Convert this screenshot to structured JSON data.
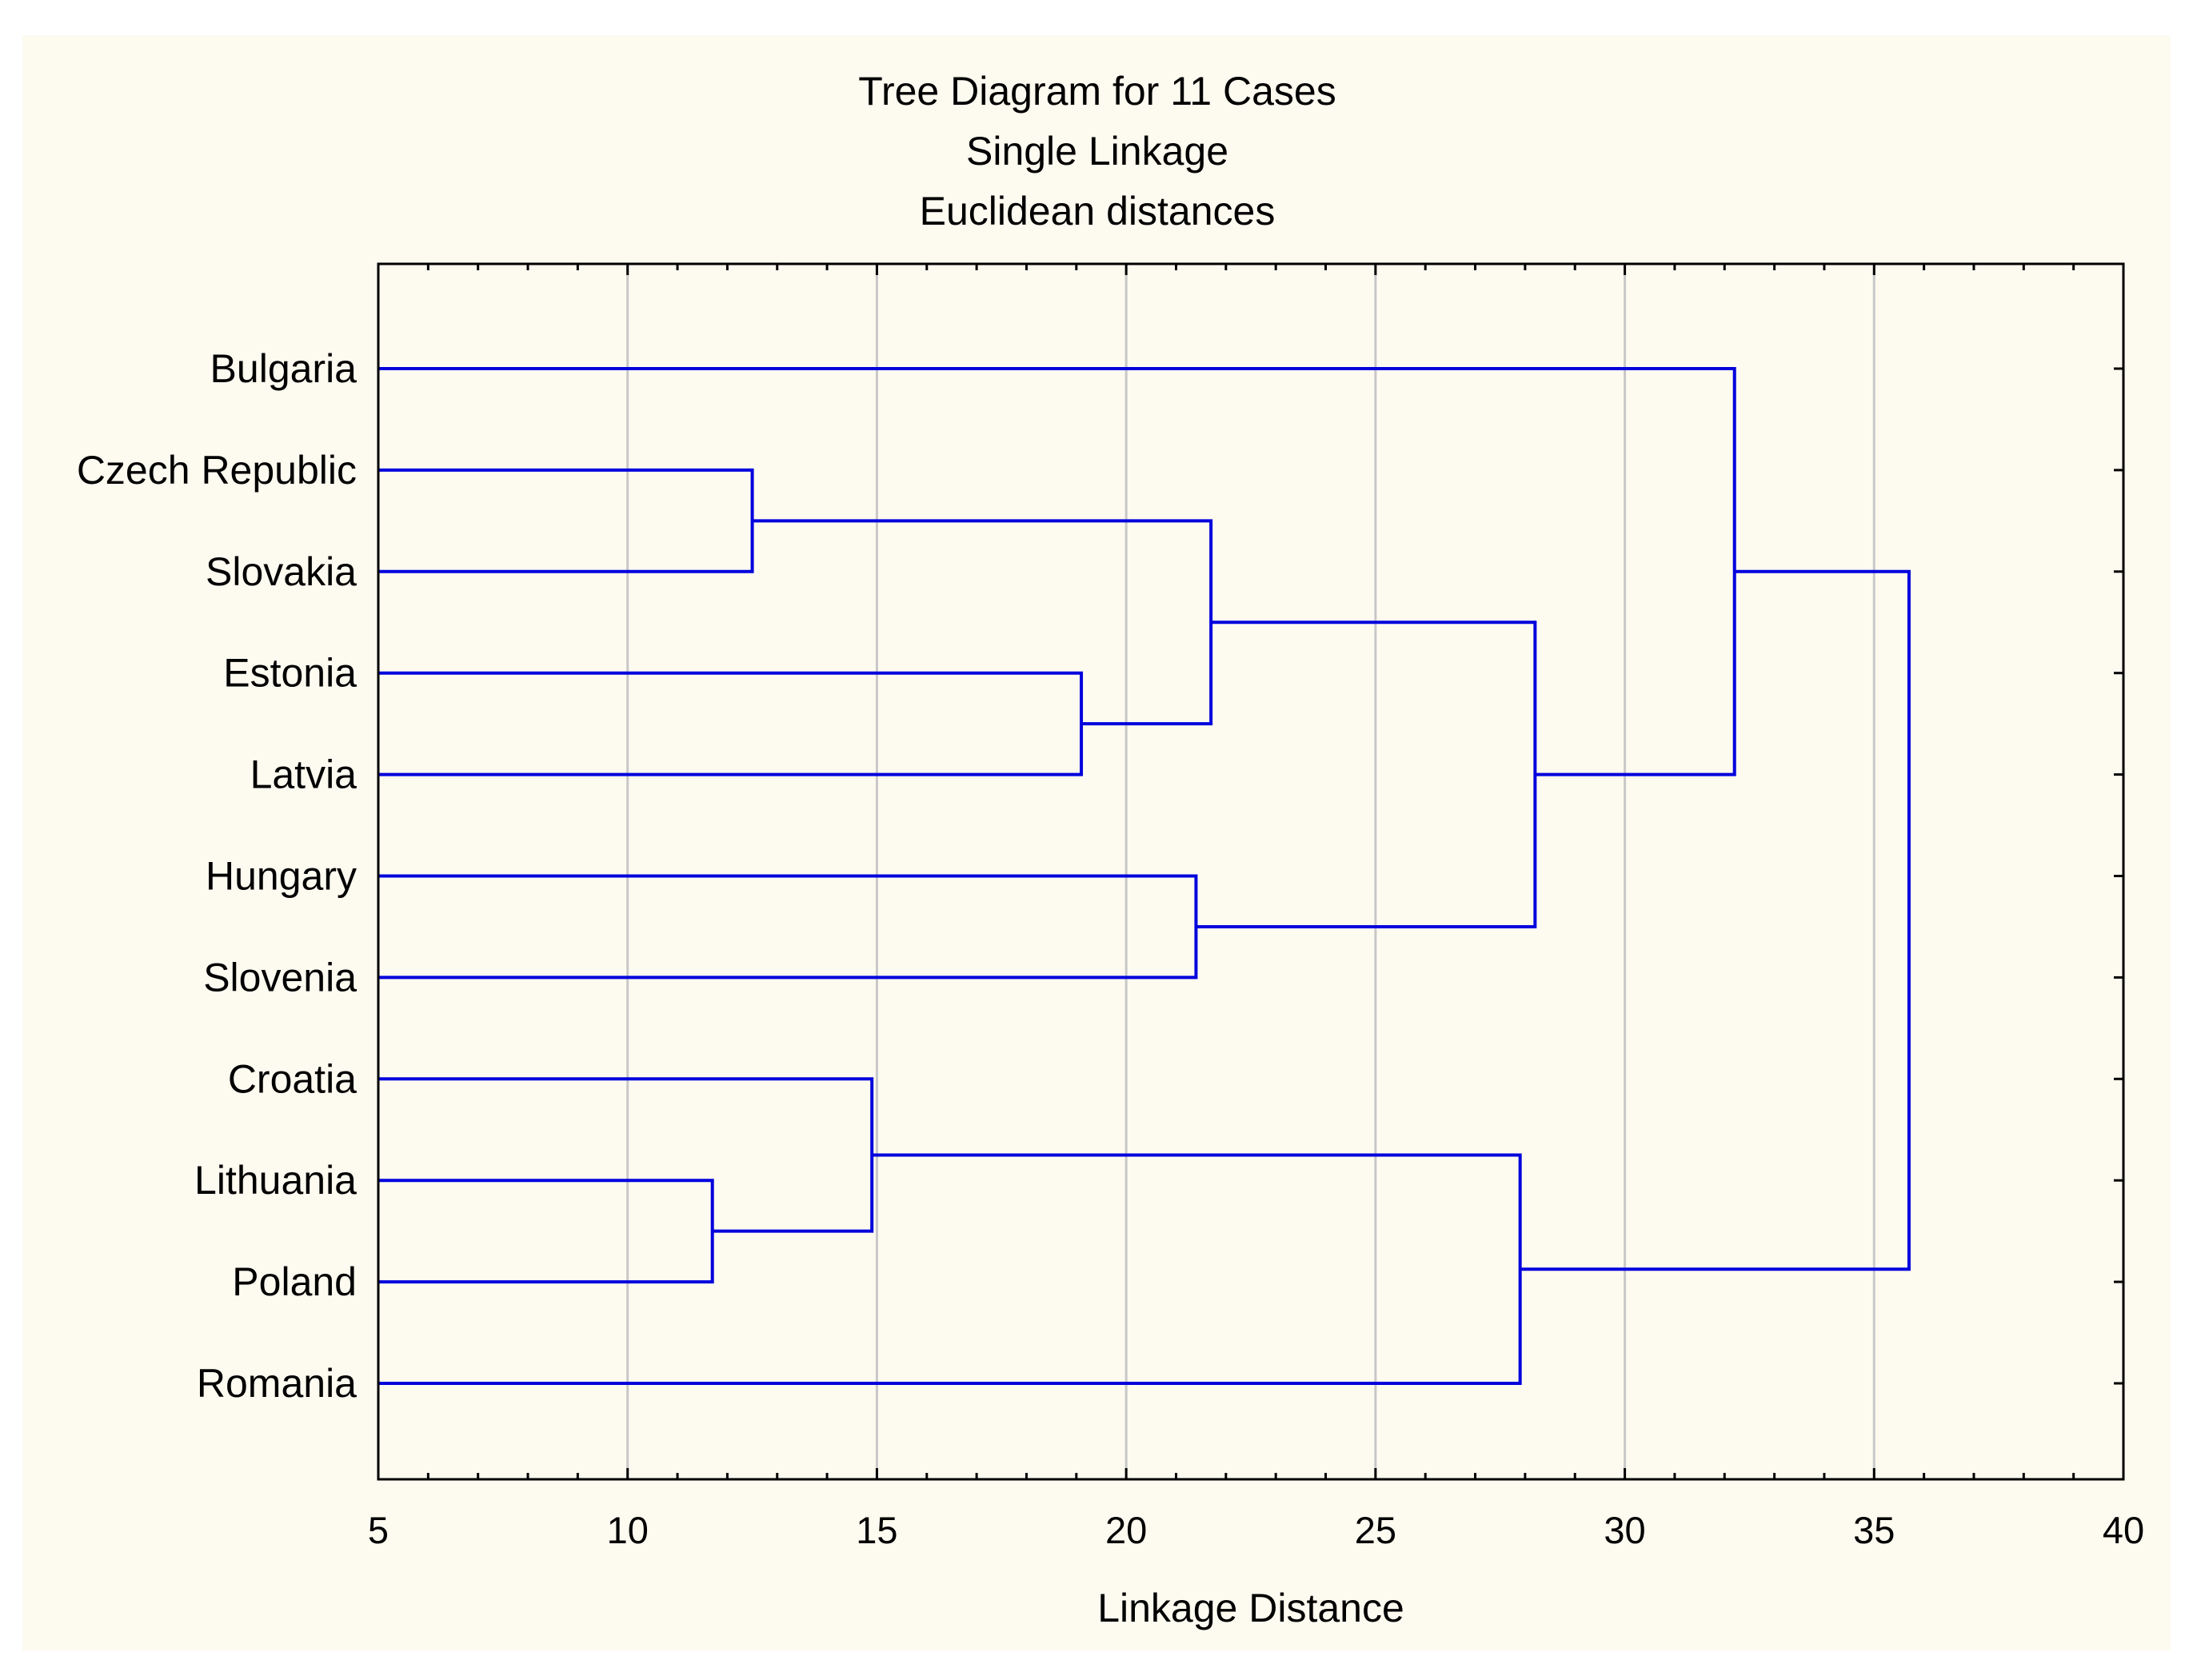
{
  "chart_data": {
    "type": "dendrogram",
    "title": "Tree Diagram for 11 Cases",
    "subtitle": [
      "Single Linkage",
      "Euclidean distances"
    ],
    "xlabel": "Linkage Distance",
    "ylabel": "",
    "xlim": [
      5,
      40
    ],
    "xticks": [
      5,
      10,
      15,
      20,
      25,
      30,
      35,
      40
    ],
    "grid": true,
    "line_color": "#0000dd",
    "grid_color": "#c8c8c8",
    "leaves": [
      "Bulgaria",
      "Czech Republic",
      "Slovakia",
      "Estonia",
      "Latvia",
      "Hungary",
      "Slovenia",
      "Croatia",
      "Lithuania",
      "Poland",
      "Romania"
    ],
    "merges": [
      {
        "left": "Lithuania",
        "right": "Poland",
        "distance": 11.7
      },
      {
        "left": "Czech Republic",
        "right": "Slovakia",
        "distance": 12.5
      },
      {
        "left": "Croatia",
        "right": "Lithuania+Poland",
        "distance": 14.9
      },
      {
        "left": "Estonia",
        "right": "Latvia",
        "distance": 19.1
      },
      {
        "left": "Hungary",
        "right": "Slovenia",
        "distance": 21.4
      },
      {
        "left": "Czech Republic+Slovakia",
        "right": "Estonia+Latvia",
        "distance": 21.7
      },
      {
        "left": "Croatia+Lithuania+Poland",
        "right": "Romania",
        "distance": 27.9
      },
      {
        "left": "Czech Republic+Slovakia+Estonia+Latvia",
        "right": "Hungary+Slovenia",
        "distance": 28.2
      },
      {
        "left": "Bulgaria",
        "right": "Czech Republic+Slovakia+Estonia+Latvia+Hungary+Slovenia",
        "distance": 32.2
      },
      {
        "left": "Bulgaria+Czech Republic+Slovakia+Estonia+Latvia+Hungary+Slovenia",
        "right": "Croatia+Lithuania+Poland+Romania",
        "distance": 35.7
      }
    ]
  }
}
